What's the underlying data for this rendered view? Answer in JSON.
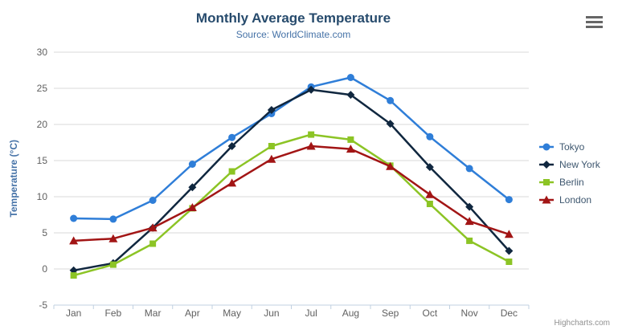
{
  "chart": {
    "credits_label": "Highcharts.com",
    "export_icon": "hamburger-icon"
  },
  "theme": {
    "title_color": "#274b6d",
    "subtitle_color": "#4572a7",
    "axis_title_color": "#4572a7",
    "label_color": "#606060",
    "grid_color": "#d8d8d8",
    "axis_line_color": "#c0d0e0",
    "legend_text_color": "#3e576f",
    "credits_color": "#909090",
    "burger_color": "#666666"
  },
  "chart_data": {
    "type": "line",
    "title": "Monthly Average Temperature",
    "subtitle": "Source: WorldClimate.com",
    "categories": [
      "Jan",
      "Feb",
      "Mar",
      "Apr",
      "May",
      "Jun",
      "Jul",
      "Aug",
      "Sep",
      "Oct",
      "Nov",
      "Dec"
    ],
    "xlabel": "",
    "ylabel": "Temperature (°C)",
    "ylim": [
      -5,
      30
    ],
    "yticks": [
      30,
      25,
      20,
      15,
      10,
      5,
      0,
      -5
    ],
    "grid": true,
    "legend_position": "right",
    "series": [
      {
        "name": "Tokyo",
        "color": "#2f7ed8",
        "marker": "circle",
        "values": [
          7.0,
          6.9,
          9.5,
          14.5,
          18.2,
          21.5,
          25.2,
          26.5,
          23.3,
          18.3,
          13.9,
          9.6
        ]
      },
      {
        "name": "New York",
        "color": "#10273f",
        "marker": "diamond",
        "values": [
          -0.2,
          0.8,
          5.7,
          11.3,
          17.0,
          22.0,
          24.8,
          24.1,
          20.1,
          14.1,
          8.6,
          2.5
        ]
      },
      {
        "name": "Berlin",
        "color": "#8cc425",
        "marker": "square",
        "values": [
          -0.9,
          0.6,
          3.5,
          8.4,
          13.5,
          17.0,
          18.6,
          17.9,
          14.3,
          9.0,
          3.9,
          1.0
        ]
      },
      {
        "name": "London",
        "color": "#a21515",
        "marker": "triangle",
        "values": [
          3.9,
          4.2,
          5.7,
          8.5,
          11.9,
          15.2,
          17.0,
          16.6,
          14.2,
          10.3,
          6.6,
          4.8
        ]
      }
    ]
  }
}
